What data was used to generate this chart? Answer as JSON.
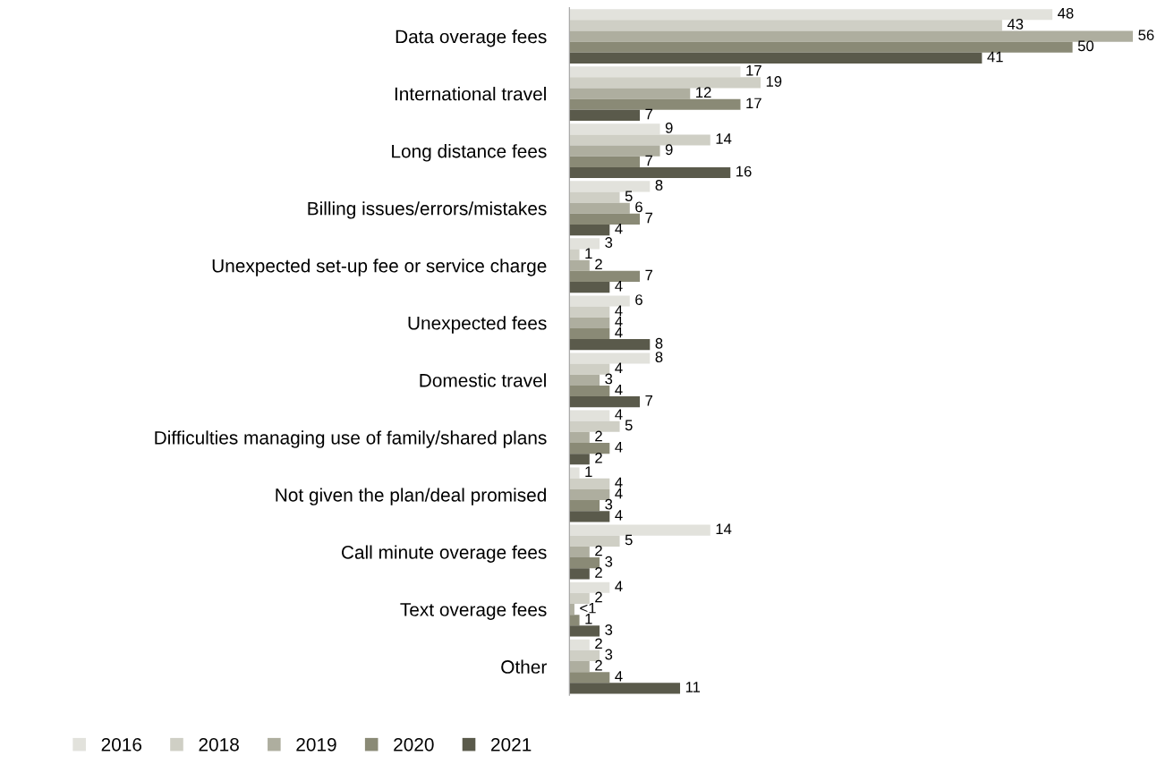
{
  "chart_data": {
    "type": "bar",
    "orientation": "horizontal",
    "categories": [
      "Data overage fees",
      "International travel",
      "Long distance fees",
      "Billing issues/errors/mistakes",
      "Unexpected set-up fee or service charge",
      "Unexpected fees",
      "Domestic travel",
      "Difficulties managing use of family/shared plans",
      "Not given the plan/deal promised",
      "Call minute overage fees",
      "Text overage fees",
      "Other"
    ],
    "series": [
      {
        "name": "2016",
        "color": "#e2e2dc",
        "values": [
          48,
          17,
          9,
          8,
          3,
          6,
          8,
          4,
          1,
          14,
          4,
          2
        ],
        "value_labels": [
          "48",
          "17",
          "9",
          "8",
          "3",
          "6",
          "8",
          "4",
          "1",
          "14",
          "4",
          "2"
        ]
      },
      {
        "name": "2018",
        "color": "#cfcfc5",
        "values": [
          43,
          19,
          14,
          5,
          1,
          4,
          4,
          5,
          4,
          5,
          2,
          3
        ],
        "value_labels": [
          "43",
          "19",
          "14",
          "5",
          "1",
          "4",
          "4",
          "5",
          "4",
          "5",
          "2",
          "3"
        ]
      },
      {
        "name": "2019",
        "color": "#aeae9f",
        "values": [
          56,
          12,
          9,
          6,
          2,
          4,
          3,
          2,
          4,
          2,
          0.5,
          2
        ],
        "value_labels": [
          "56",
          "12",
          "9",
          "6",
          "2",
          "4",
          "3",
          "2",
          "4",
          "2",
          "<1",
          "2"
        ]
      },
      {
        "name": "2020",
        "color": "#8a8a76",
        "values": [
          50,
          17,
          7,
          7,
          7,
          4,
          4,
          4,
          3,
          3,
          1,
          4
        ],
        "value_labels": [
          "50",
          "17",
          "7",
          "7",
          "7",
          "4",
          "4",
          "4",
          "3",
          "3",
          "1",
          "4"
        ]
      },
      {
        "name": "2021",
        "color": "#5a5a4b",
        "values": [
          41,
          7,
          16,
          4,
          4,
          8,
          7,
          2,
          4,
          2,
          3,
          11
        ],
        "value_labels": [
          "41",
          "7",
          "16",
          "4",
          "4",
          "8",
          "7",
          "2",
          "4",
          "2",
          "3",
          "11"
        ]
      }
    ],
    "legend": "bottom",
    "grid": false,
    "tick_labels": "y"
  }
}
